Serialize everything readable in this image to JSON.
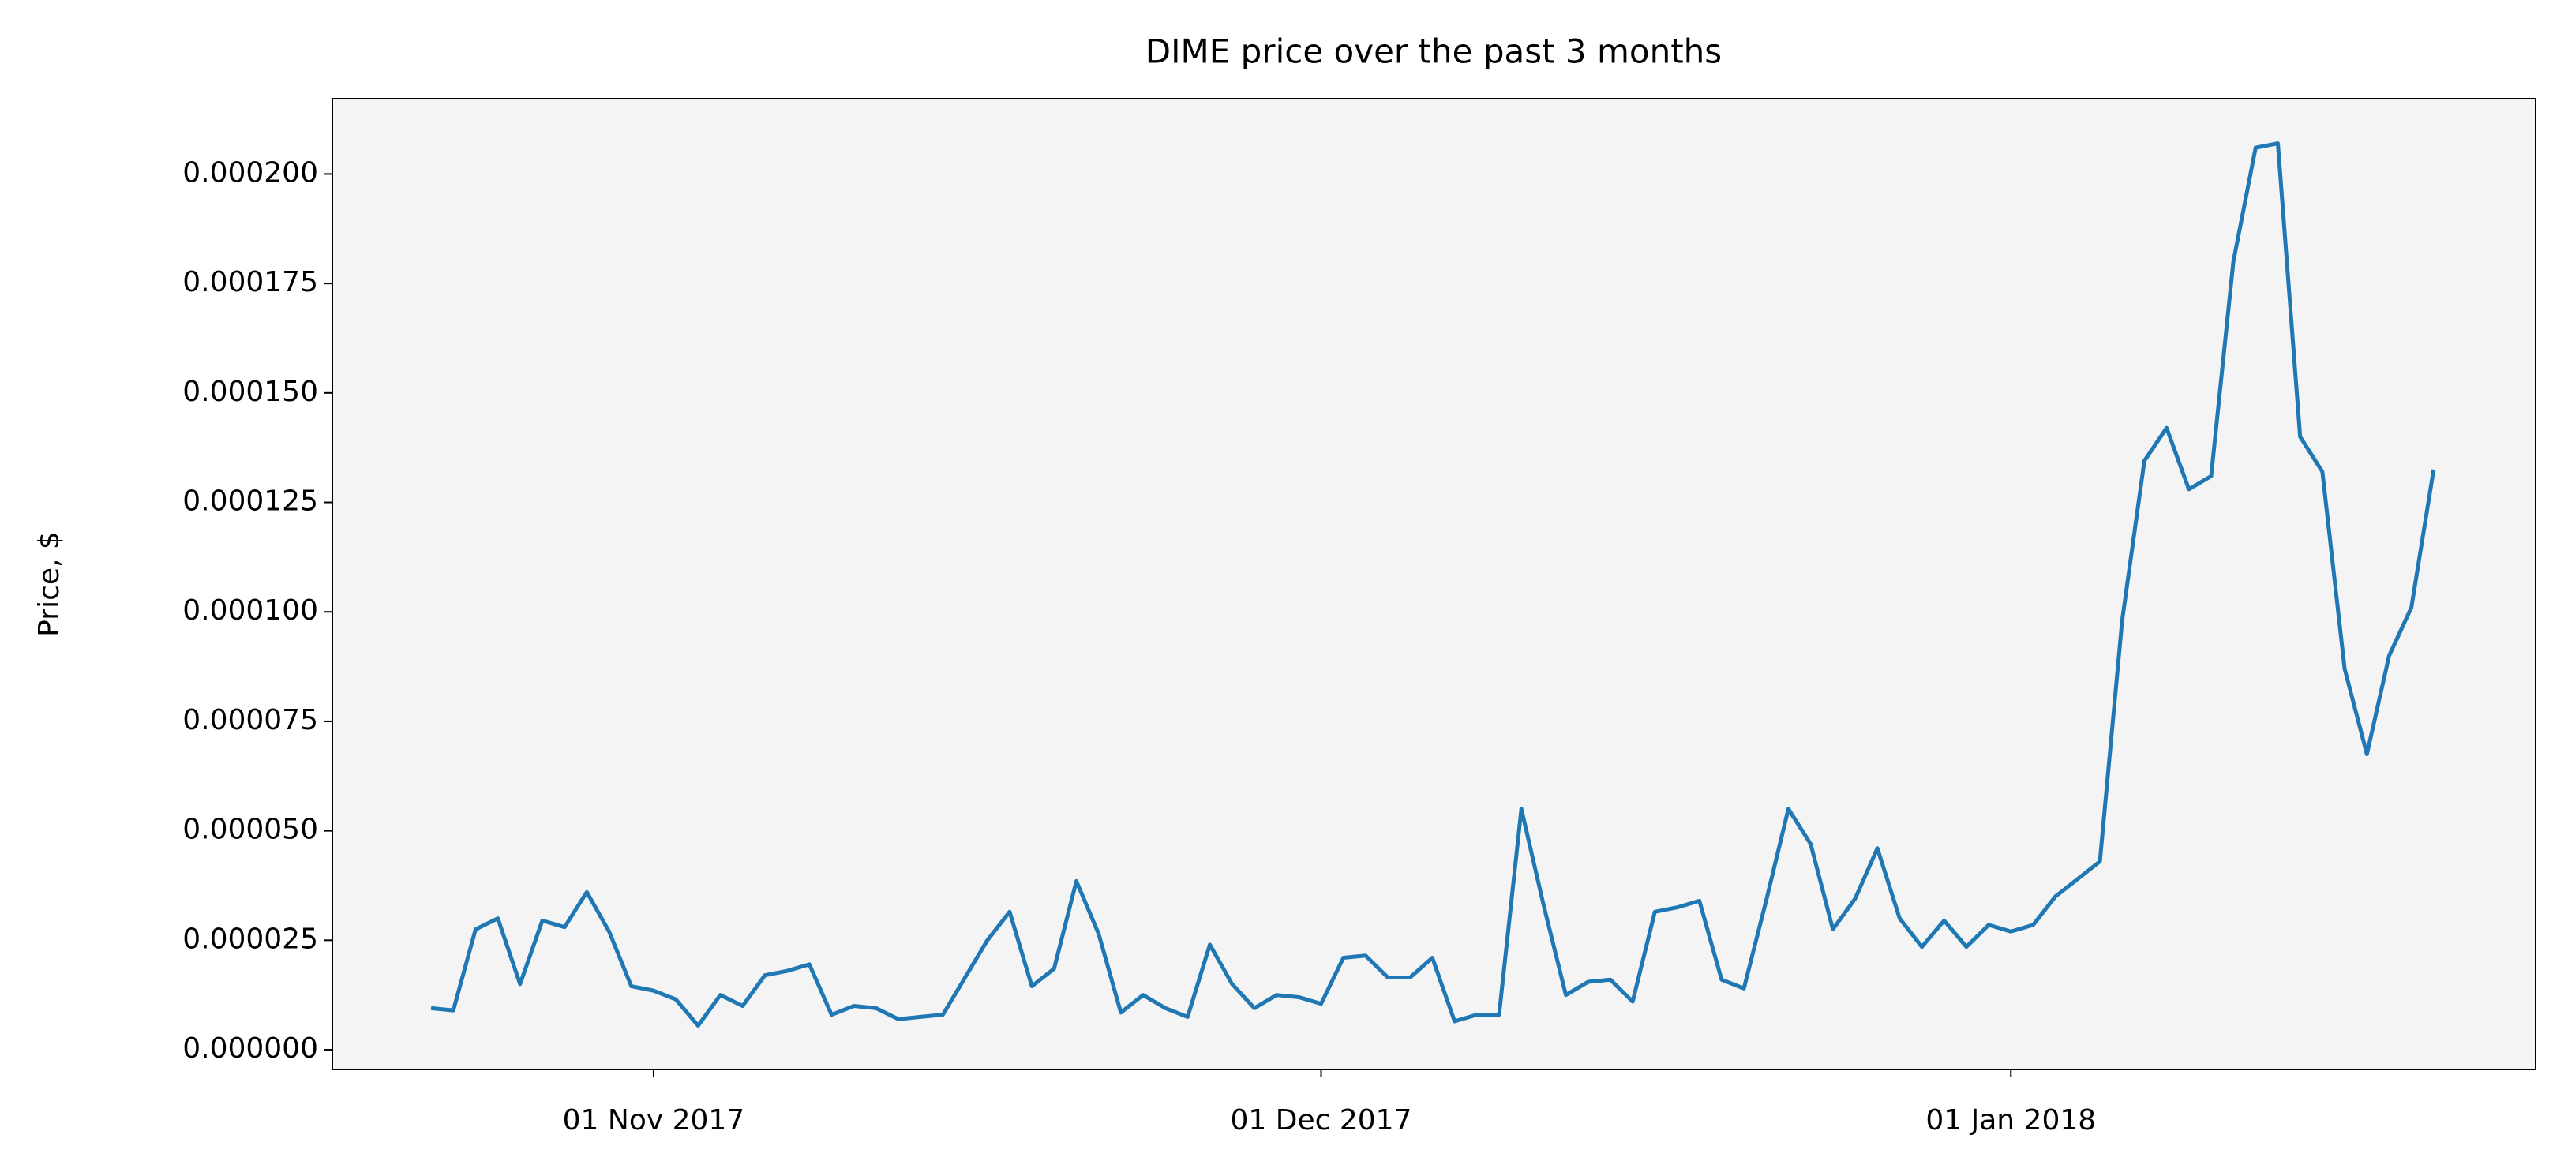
{
  "chart_data": {
    "type": "line",
    "title": "DIME price over the past 3 months",
    "y_label": "Price, $",
    "x": [
      "2017-10-22",
      "2017-10-23",
      "2017-10-24",
      "2017-10-25",
      "2017-10-26",
      "2017-10-27",
      "2017-10-28",
      "2017-10-29",
      "2017-10-30",
      "2017-10-31",
      "2017-11-01",
      "2017-11-02",
      "2017-11-03",
      "2017-11-04",
      "2017-11-05",
      "2017-11-06",
      "2017-11-07",
      "2017-11-08",
      "2017-11-09",
      "2017-11-10",
      "2017-11-11",
      "2017-11-12",
      "2017-11-13",
      "2017-11-14",
      "2017-11-15",
      "2017-11-16",
      "2017-11-17",
      "2017-11-18",
      "2017-11-19",
      "2017-11-20",
      "2017-11-21",
      "2017-11-22",
      "2017-11-23",
      "2017-11-24",
      "2017-11-25",
      "2017-11-26",
      "2017-11-27",
      "2017-11-28",
      "2017-11-29",
      "2017-11-30",
      "2017-12-01",
      "2017-12-02",
      "2017-12-03",
      "2017-12-04",
      "2017-12-05",
      "2017-12-06",
      "2017-12-07",
      "2017-12-08",
      "2017-12-09",
      "2017-12-10",
      "2017-12-11",
      "2017-12-12",
      "2017-12-13",
      "2017-12-14",
      "2017-12-15",
      "2017-12-16",
      "2017-12-17",
      "2017-12-18",
      "2017-12-19",
      "2017-12-20",
      "2017-12-21",
      "2017-12-22",
      "2017-12-23",
      "2017-12-24",
      "2017-12-25",
      "2017-12-26",
      "2017-12-27",
      "2017-12-28",
      "2017-12-29",
      "2017-12-30",
      "2017-12-31",
      "2018-01-01",
      "2018-01-02",
      "2018-01-03",
      "2018-01-04",
      "2018-01-05",
      "2018-01-06",
      "2018-01-07",
      "2018-01-08",
      "2018-01-09",
      "2018-01-10",
      "2018-01-11",
      "2018-01-12",
      "2018-01-13",
      "2018-01-14",
      "2018-01-15",
      "2018-01-16",
      "2018-01-17",
      "2018-01-18",
      "2018-01-19",
      "2018-01-20"
    ],
    "series": [
      {
        "name": "DIME",
        "color": "#1f77b4",
        "values": [
          9.5e-06,
          9e-06,
          2.75e-05,
          3e-05,
          1.5e-05,
          2.95e-05,
          2.8e-05,
          3.6e-05,
          2.7e-05,
          1.45e-05,
          1.35e-05,
          1.15e-05,
          5.5e-06,
          1.25e-05,
          1e-05,
          1.7e-05,
          1.8e-05,
          1.95e-05,
          8e-06,
          1e-05,
          9.5e-06,
          7e-06,
          7.5e-06,
          8e-06,
          1.65e-05,
          2.5e-05,
          3.15e-05,
          1.45e-05,
          1.85e-05,
          3.85e-05,
          2.65e-05,
          8.5e-06,
          1.25e-05,
          9.5e-06,
          7.5e-06,
          2.4e-05,
          1.5e-05,
          9.5e-06,
          1.25e-05,
          1.2e-05,
          1.05e-05,
          2.1e-05,
          2.15e-05,
          1.65e-05,
          1.65e-05,
          2.1e-05,
          6.5e-06,
          8e-06,
          8e-06,
          5.5e-05,
          3.3e-05,
          1.25e-05,
          1.55e-05,
          1.6e-05,
          1.1e-05,
          3.15e-05,
          3.25e-05,
          3.4e-05,
          1.6e-05,
          1.4e-05,
          3.4e-05,
          5.5e-05,
          4.7e-05,
          2.75e-05,
          3.45e-05,
          4.6e-05,
          3e-05,
          2.35e-05,
          2.95e-05,
          2.35e-05,
          2.85e-05,
          2.7e-05,
          2.85e-05,
          3.5e-05,
          3.9e-05,
          4.3e-05,
          9.8e-05,
          0.0001345,
          0.000142,
          0.000128,
          0.000131,
          0.00018,
          0.000206,
          0.000207,
          0.00014,
          0.000132,
          8.7e-05,
          6.75e-05,
          9e-05,
          0.000101,
          0.0001325
        ]
      }
    ],
    "xlim": [
      "2017-10-17T13:30Z",
      "2018-01-24T14:00Z"
    ],
    "xticks": [
      {
        "value": "2017-11-01",
        "label": "01 Nov 2017"
      },
      {
        "value": "2017-12-01",
        "label": "01 Dec 2017"
      },
      {
        "value": "2018-01-01",
        "label": "01 Jan 2018"
      }
    ],
    "ylim": [
      -4.5e-06,
      0.0002172
    ],
    "yticks": [
      {
        "value": 0,
        "label": "0.000000"
      },
      {
        "value": 2.5e-05,
        "label": "0.000025"
      },
      {
        "value": 5e-05,
        "label": "0.000050"
      },
      {
        "value": 7.5e-05,
        "label": "0.000075"
      },
      {
        "value": 0.0001,
        "label": "0.000100"
      },
      {
        "value": 0.000125,
        "label": "0.000125"
      },
      {
        "value": 0.00015,
        "label": "0.000150"
      },
      {
        "value": 0.000175,
        "label": "0.000175"
      },
      {
        "value": 0.0002,
        "label": "0.000200"
      }
    ],
    "grid": false,
    "background": "#f4f4f4"
  }
}
